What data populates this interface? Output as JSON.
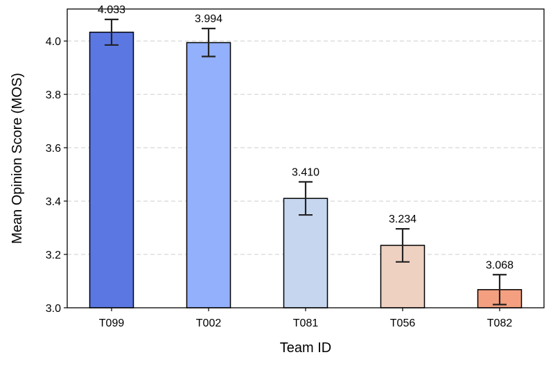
{
  "chart_data": {
    "type": "bar",
    "title": "",
    "xlabel": "Team ID",
    "ylabel": "Mean Opinion Score (MOS)",
    "categories": [
      "T099",
      "T002",
      "T081",
      "T056",
      "T082"
    ],
    "values": [
      4.033,
      3.994,
      3.41,
      3.234,
      3.068
    ],
    "value_labels": [
      "4.033",
      "3.994",
      "3.410",
      "3.234",
      "3.068"
    ],
    "error_low": [
      3.985,
      3.942,
      3.348,
      3.172,
      3.012
    ],
    "error_high": [
      4.081,
      4.047,
      3.472,
      3.296,
      3.124
    ],
    "colors": [
      "#5b78e2",
      "#93b0fc",
      "#c6d6ef",
      "#efd1c2",
      "#f4a080"
    ],
    "ylim": [
      3.0,
      4.12
    ],
    "yticks": [
      3.0,
      3.2,
      3.4,
      3.6,
      3.8,
      4.0
    ],
    "ytick_labels": [
      "3.0",
      "3.2",
      "3.4",
      "3.6",
      "3.8",
      "4.0"
    ],
    "grid": "y-dashed",
    "legend": "none"
  }
}
